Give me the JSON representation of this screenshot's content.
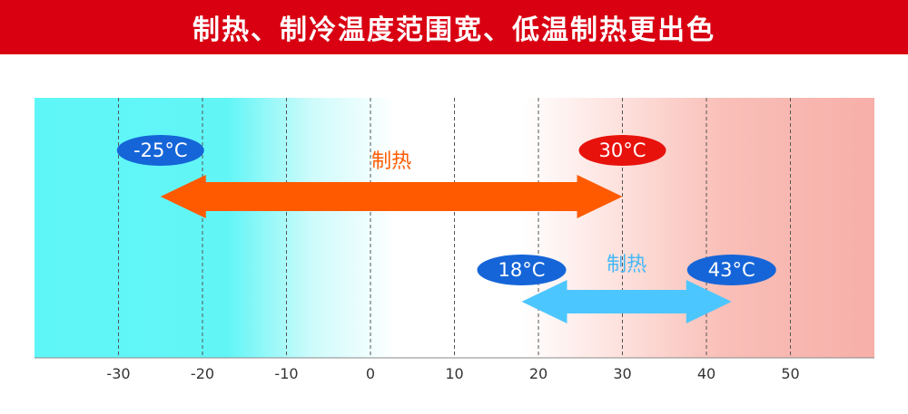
{
  "banner": {
    "title": "制热、制冷温度范围宽、低温制热更出色"
  },
  "axis": {
    "min": -40,
    "max": 60,
    "ticks": [
      -30,
      -20,
      -10,
      0,
      10,
      20,
      30,
      40,
      50
    ],
    "tick_labels": [
      "-30",
      "-20",
      "-10",
      "0",
      "10",
      "20",
      "30",
      "40",
      "50"
    ]
  },
  "ranges": [
    {
      "label": "制热",
      "from": -25,
      "to": 30,
      "from_label": "-25°C",
      "to_label": "30°C",
      "arrow_color": "#ff5a00",
      "label_color": "#ff5a00",
      "from_pill_color": "#1565d8",
      "to_pill_color": "#e8120c"
    },
    {
      "label": "制热",
      "from": 18,
      "to": 43,
      "from_label": "18°C",
      "to_label": "43°C",
      "arrow_color": "#4cc6ff",
      "label_color": "#45b8f5",
      "from_pill_color": "#1565d8",
      "to_pill_color": "#1565d8"
    }
  ],
  "colors": {
    "cold": "#5ff6f8",
    "hot": "#f7b0aa",
    "banner": "#d90012"
  }
}
